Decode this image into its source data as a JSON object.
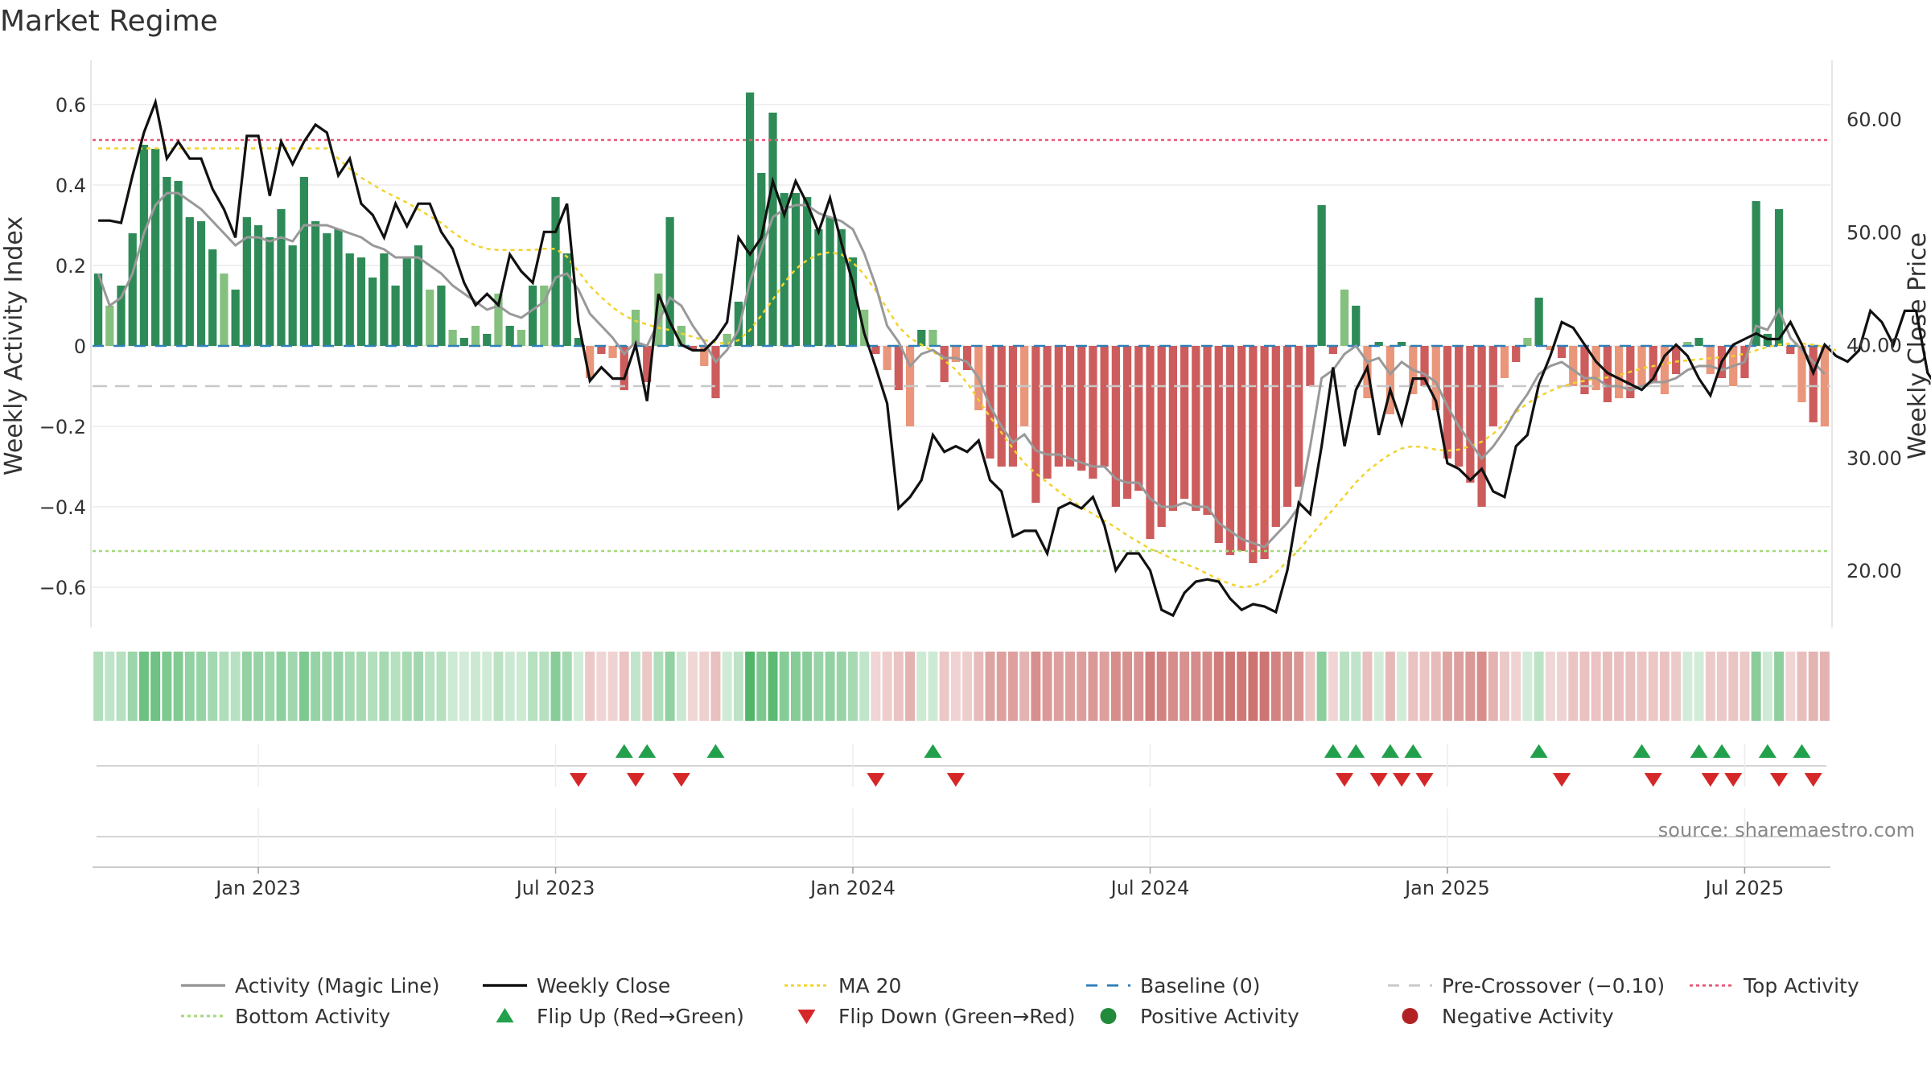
{
  "chart_data": {
    "type": "bar",
    "title": "Market Regime",
    "ylabel_left": "Weekly Activity Index",
    "ylabel_right": "Weekly Close Price",
    "source": "source: sharemaestro.com",
    "ylim_left": [
      -0.7,
      0.7
    ],
    "ylim_right": [
      14,
      64
    ],
    "left_ticks": [
      {
        "v": 0.6,
        "label": "0.6"
      },
      {
        "v": 0.4,
        "label": "0.4"
      },
      {
        "v": 0.2,
        "label": "0.2"
      },
      {
        "v": 0,
        "label": "0"
      },
      {
        "v": -0.2,
        "label": "−0.2"
      },
      {
        "v": -0.4,
        "label": "−0.4"
      },
      {
        "v": -0.6,
        "label": "−0.6"
      }
    ],
    "right_ticks": [
      {
        "v": 60,
        "label": "60.00"
      },
      {
        "v": 50,
        "label": "50.00"
      },
      {
        "v": 40,
        "label": "40.00"
      },
      {
        "v": 30,
        "label": "30.00"
      },
      {
        "v": 20,
        "label": "20.00"
      }
    ],
    "x_ticks": [
      {
        "week": 14,
        "label": "Jan 2023"
      },
      {
        "week": 40,
        "label": "Jul 2023"
      },
      {
        "week": 66,
        "label": "Jan 2024"
      },
      {
        "week": 92,
        "label": "Jul 2024"
      },
      {
        "week": 118,
        "label": "Jan 2025"
      },
      {
        "week": 144,
        "label": "Jul 2025"
      }
    ],
    "x_range": [
      0,
      156
    ],
    "top_activity": 0.5,
    "bottom_activity": -0.51,
    "pre_crossover": -0.1,
    "baseline": 0,
    "activity": [
      0.18,
      0.1,
      0.15,
      0.28,
      0.5,
      0.49,
      0.42,
      0.41,
      0.32,
      0.31,
      0.24,
      0.18,
      0.14,
      0.32,
      0.3,
      0.27,
      0.34,
      0.25,
      0.42,
      0.31,
      0.28,
      0.29,
      0.23,
      0.22,
      0.17,
      0.23,
      0.15,
      0.22,
      0.25,
      0.14,
      0.15,
      0.04,
      0.02,
      0.05,
      0.03,
      0.13,
      0.05,
      0.04,
      0.15,
      0.15,
      0.37,
      0.23,
      0.02,
      -0.08,
      -0.02,
      -0.03,
      -0.11,
      0.09,
      -0.09,
      0.18,
      0.32,
      0.05,
      -0.01,
      -0.05,
      -0.13,
      0.03,
      0.11,
      0.63,
      0.43,
      0.58,
      0.38,
      0.38,
      0.37,
      0.29,
      0.32,
      0.29,
      0.22,
      0.09,
      -0.02,
      -0.06,
      -0.11,
      -0.2,
      0.04,
      0.04,
      -0.09,
      -0.04,
      -0.06,
      -0.16,
      -0.28,
      -0.3,
      -0.3,
      -0.2,
      -0.39,
      -0.33,
      -0.3,
      -0.3,
      -0.31,
      -0.33,
      -0.3,
      -0.4,
      -0.38,
      -0.36,
      -0.48,
      -0.45,
      -0.41,
      -0.38,
      -0.41,
      -0.42,
      -0.49,
      -0.52,
      -0.51,
      -0.54,
      -0.53,
      -0.45,
      -0.4,
      -0.35,
      -0.1,
      0.35,
      -0.02,
      0.14,
      0.1,
      -0.13,
      0.01,
      -0.17,
      0.01,
      -0.12,
      -0.1,
      -0.16,
      -0.28,
      -0.3,
      -0.34,
      -0.4,
      -0.2,
      -0.08,
      -0.04,
      0.02,
      0.12,
      -0.01,
      -0.03,
      -0.1,
      -0.12,
      -0.11,
      -0.14,
      -0.13,
      -0.13,
      -0.1,
      -0.09,
      -0.12,
      -0.07,
      0.01,
      0.02,
      -0.07,
      -0.08,
      -0.1,
      -0.08,
      0.36,
      0.03,
      0.34,
      -0.02,
      -0.14,
      -0.19,
      -0.2
    ],
    "close": [
      51,
      51,
      50.8,
      55,
      58.8,
      61.5,
      56.5,
      58,
      56.5,
      56.5,
      53.8,
      52,
      49.5,
      58.5,
      58.5,
      53.2,
      58,
      56,
      58,
      59.5,
      58.8,
      55,
      56.5,
      52.5,
      51.5,
      49.5,
      52.5,
      50.5,
      52.5,
      52.5,
      50,
      48.5,
      45.5,
      43.5,
      44.5,
      43.5,
      48,
      46.5,
      45.5,
      50,
      50,
      52.5,
      42,
      36.8,
      38,
      37,
      37,
      40,
      35,
      44.5,
      42,
      40,
      39.5,
      39.5,
      40.5,
      42,
      49.5,
      48,
      49.5,
      54.5,
      51.5,
      54.5,
      52.5,
      50,
      53,
      49,
      45.5,
      41,
      38,
      34.8,
      25.5,
      26.5,
      28,
      32,
      30.5,
      31,
      30.5,
      31.5,
      28,
      27,
      23,
      23.5,
      23.5,
      21.5,
      25.5,
      26,
      25.5,
      26.5,
      24,
      20,
      21.5,
      21.5,
      20,
      16.5,
      16,
      18,
      19,
      19.2,
      19,
      17.5,
      16.5,
      17,
      16.8,
      16.3,
      20,
      26,
      25,
      31,
      38,
      31,
      36,
      38,
      32,
      36,
      33,
      37,
      37,
      35,
      29.5,
      29,
      28,
      29,
      27,
      26.5,
      31,
      32,
      36.5,
      39,
      42,
      41.5,
      40,
      38.5,
      37.5,
      37,
      36.5,
      36,
      37,
      39,
      40,
      39,
      37,
      35.5,
      38.5,
      40,
      40.5,
      41,
      40.5,
      40.5,
      42,
      40,
      37.5,
      40,
      39,
      38.5,
      39.5,
      43,
      42,
      40,
      43,
      43,
      37.5,
      36,
      35.5
    ],
    "magic_line": [
      0.18,
      0.1,
      0.12,
      0.18,
      0.28,
      0.35,
      0.38,
      0.38,
      0.36,
      0.34,
      0.31,
      0.28,
      0.25,
      0.27,
      0.27,
      0.26,
      0.27,
      0.26,
      0.3,
      0.3,
      0.3,
      0.29,
      0.28,
      0.27,
      0.25,
      0.24,
      0.22,
      0.22,
      0.22,
      0.2,
      0.18,
      0.15,
      0.13,
      0.11,
      0.09,
      0.1,
      0.08,
      0.07,
      0.09,
      0.11,
      0.17,
      0.18,
      0.14,
      0.08,
      0.05,
      0.02,
      -0.02,
      0.01,
      0.0,
      0.06,
      0.12,
      0.1,
      0.05,
      0.01,
      -0.04,
      -0.01,
      0.04,
      0.16,
      0.24,
      0.32,
      0.34,
      0.35,
      0.35,
      0.33,
      0.32,
      0.31,
      0.29,
      0.23,
      0.15,
      0.05,
      0.01,
      -0.05,
      -0.02,
      -0.01,
      -0.03,
      -0.03,
      -0.04,
      -0.08,
      -0.15,
      -0.2,
      -0.24,
      -0.22,
      -0.26,
      -0.27,
      -0.27,
      -0.28,
      -0.29,
      -0.3,
      -0.3,
      -0.33,
      -0.34,
      -0.34,
      -0.38,
      -0.4,
      -0.4,
      -0.39,
      -0.4,
      -0.4,
      -0.44,
      -0.46,
      -0.48,
      -0.49,
      -0.5,
      -0.47,
      -0.44,
      -0.4,
      -0.25,
      -0.08,
      -0.06,
      -0.02,
      0.0,
      -0.04,
      -0.03,
      -0.07,
      -0.04,
      -0.06,
      -0.07,
      -0.09,
      -0.15,
      -0.2,
      -0.24,
      -0.28,
      -0.25,
      -0.21,
      -0.16,
      -0.12,
      -0.07,
      -0.05,
      -0.04,
      -0.06,
      -0.08,
      -0.08,
      -0.1,
      -0.1,
      -0.11,
      -0.1,
      -0.09,
      -0.09,
      -0.08,
      -0.06,
      -0.05,
      -0.05,
      -0.06,
      -0.05,
      -0.04,
      0.05,
      0.04,
      0.09,
      0.02,
      -0.01,
      -0.04,
      -0.07
    ],
    "ma20": [
      57.4,
      57.4,
      57.4,
      57.4,
      57.4,
      57.4,
      57.4,
      57.4,
      57.4,
      57.4,
      57.4,
      57.4,
      57.4,
      57.4,
      57.4,
      57.4,
      57.4,
      57.4,
      57.4,
      57.4,
      57.4,
      56.5,
      55.6,
      54.8,
      54.2,
      53.6,
      53.1,
      52.6,
      52.0,
      51.4,
      50.8,
      50.0,
      49.3,
      48.8,
      48.5,
      48.4,
      48.4,
      48.4,
      48.4,
      48.5,
      48.5,
      47.8,
      46.5,
      45.2,
      44.2,
      43.3,
      42.6,
      42.1,
      41.8,
      41.5,
      41.3,
      41.0,
      40.7,
      40.4,
      40.2,
      40.1,
      40.4,
      41.3,
      42.6,
      44.0,
      45.5,
      46.7,
      47.5,
      48.0,
      48.2,
      48.0,
      47.3,
      46.2,
      44.8,
      43.2,
      41.6,
      40.6,
      40.0,
      39.4,
      38.6,
      37.8,
      36.6,
      35.1,
      33.6,
      32.2,
      30.8,
      29.5,
      28.6,
      27.8,
      27.0,
      26.3,
      25.6,
      25.0,
      24.4,
      23.8,
      23.1,
      22.5,
      21.9,
      21.5,
      21.0,
      20.6,
      20.2,
      19.7,
      19.2,
      18.8,
      18.5,
      18.6,
      19.0,
      19.8,
      20.8,
      21.8,
      23.0,
      24.2,
      25.4,
      26.6,
      27.8,
      28.8,
      29.6,
      30.3,
      30.8,
      31.0,
      30.9,
      30.7,
      30.6,
      30.7,
      31.0,
      31.4,
      32.1,
      33.0,
      34.0,
      34.8,
      35.4,
      35.9,
      36.3,
      36.6,
      36.8,
      37.0,
      37.1,
      37.3,
      37.6,
      37.9,
      38.1,
      38.3,
      38.5,
      38.6,
      38.7,
      38.8,
      38.9,
      39.0,
      39.2,
      39.5,
      39.8,
      40.0,
      40.1,
      40.1,
      40.0,
      39.8,
      39.5
    ],
    "flip_up_weeks": [
      46,
      48,
      54,
      73,
      108,
      110,
      113,
      115,
      126,
      135,
      140,
      142,
      146,
      149
    ],
    "flip_down_weeks": [
      42,
      47,
      51,
      68,
      75,
      109,
      112,
      114,
      116,
      128,
      136,
      141,
      143,
      147,
      150
    ],
    "legend": [
      {
        "label": "Activity (Magic Line)",
        "kind": "line",
        "color": "#999999"
      },
      {
        "label": "Weekly Close",
        "kind": "line",
        "color": "#111111"
      },
      {
        "label": "MA 20",
        "kind": "dotted",
        "color": "#f2d32e"
      },
      {
        "label": "Baseline (0)",
        "kind": "dashed",
        "color": "#2f7fb8"
      },
      {
        "label": "Pre-Crossover (−0.10)",
        "kind": "dashed",
        "color": "#c8c8c8"
      },
      {
        "label": "Top Activity",
        "kind": "dotted",
        "color": "#e8597a"
      },
      {
        "label": "Bottom Activity",
        "kind": "dotted",
        "color": "#a4d97a"
      },
      {
        "label": "Flip Up (Red→Green)",
        "kind": "tri-up",
        "color": "#22a04b"
      },
      {
        "label": "Flip Down (Green→Red)",
        "kind": "tri-down",
        "color": "#d62728"
      },
      {
        "label": "Positive Activity",
        "kind": "dot",
        "color": "#228b3b"
      },
      {
        "label": "Negative Activity",
        "kind": "dot",
        "color": "#b22222"
      }
    ]
  },
  "colors": {
    "green_strong": "#2e8b57",
    "green_light": "#84c07e",
    "red_strong": "#cd5c5c",
    "red_light": "#e9967a"
  }
}
